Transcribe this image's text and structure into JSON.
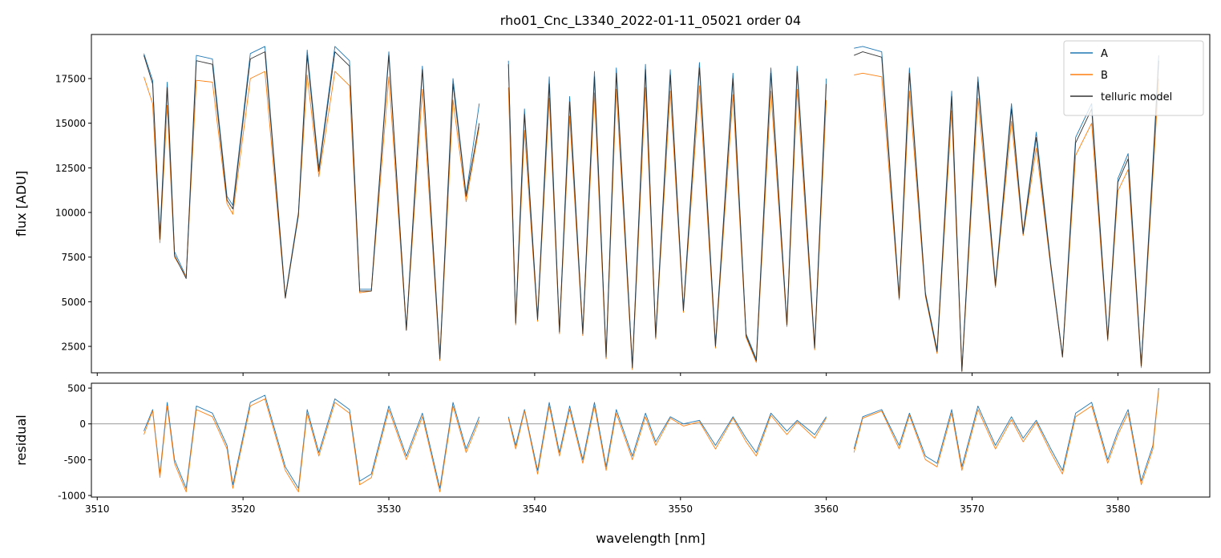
{
  "chart_data": [
    {
      "type": "line",
      "title": "rho01_Cnc_L3340_2022-01-11_05021  order 04",
      "ylabel": "flux [ADU]",
      "x": [
        3513.2,
        3513.8,
        3514.3,
        3514.8,
        3515.3,
        3516.1,
        3516.8,
        3517.9,
        3518.9,
        3519.3,
        3520.5,
        3521.5,
        3522.9,
        3523.8,
        3524.4,
        3525.2,
        3526.3,
        3527.3,
        3528.0,
        3528.8,
        3530.0,
        3531.2,
        3532.3,
        3533.5,
        3534.4,
        3535.3,
        3536.2,
        3537.0,
        3538.2,
        3538.7,
        3539.3,
        3540.2,
        3541.0,
        3541.7,
        3542.4,
        3543.3,
        3544.1,
        3544.9,
        3545.6,
        3546.7,
        3547.6,
        3548.3,
        3549.3,
        3550.2,
        3551.3,
        3552.4,
        3553.6,
        3554.5,
        3555.2,
        3556.2,
        3557.3,
        3558.0,
        3559.2,
        3560.0,
        3561.0,
        3561.9,
        3562.5,
        3563.8,
        3565.0,
        3565.7,
        3566.8,
        3567.6,
        3568.6,
        3569.3,
        3570.4,
        3571.6,
        3572.7,
        3573.5,
        3574.4,
        3575.4,
        3576.2,
        3577.1,
        3578.2,
        3579.3,
        3580.0,
        3580.7,
        3581.6,
        3582.4,
        3582.8
      ],
      "series": [
        {
          "name": "A",
          "color": "#1f77b4",
          "values": [
            18900,
            17400,
            8700,
            17300,
            7800,
            6400,
            18800,
            18600,
            10900,
            10400,
            18900,
            19300,
            5300,
            10000,
            19100,
            12500,
            19300,
            18500,
            5700,
            5700,
            19000,
            3500,
            18200,
            1900,
            17500,
            11000,
            16100,
            null,
            18500,
            3900,
            15800,
            4100,
            17600,
            3400,
            16500,
            3300,
            17900,
            2000,
            18100,
            1400,
            18300,
            3100,
            18000,
            4600,
            18400,
            2600,
            17800,
            3200,
            1800,
            18100,
            3800,
            18200,
            2500,
            17500,
            null,
            19200,
            19300,
            19000,
            5300,
            18100,
            5500,
            2300,
            16800,
            1200,
            17600,
            6000,
            16100,
            8900,
            14500,
            7100,
            2000,
            14200,
            16100,
            3000,
            11900,
            13300,
            1500,
            12800,
            18800
          ]
        },
        {
          "name": "B",
          "color": "#ff7f0e",
          "values": [
            17600,
            16100,
            8300,
            16000,
            7500,
            6400,
            17400,
            17300,
            10500,
            9900,
            17500,
            17900,
            5200,
            9800,
            17700,
            12000,
            17900,
            17100,
            5500,
            5600,
            17600,
            3400,
            16900,
            1700,
            16300,
            10600,
            14800,
            null,
            17000,
            3700,
            14600,
            3900,
            16400,
            3200,
            15400,
            3100,
            16700,
            1800,
            16900,
            1200,
            17000,
            2900,
            16800,
            4400,
            17100,
            2400,
            16600,
            3000,
            1600,
            16800,
            3600,
            16900,
            2300,
            16300,
            null,
            17700,
            17800,
            17600,
            5100,
            16800,
            5300,
            2100,
            15700,
            1100,
            16400,
            5800,
            15100,
            8700,
            13600,
            6900,
            1900,
            13200,
            15000,
            2800,
            11200,
            12400,
            1300,
            12000,
            17500
          ]
        },
        {
          "name": "telluric model",
          "color": "#333333",
          "values": [
            18800,
            17200,
            8500,
            17000,
            7600,
            6300,
            18500,
            18300,
            10700,
            10200,
            18600,
            19000,
            5200,
            9900,
            18800,
            12300,
            19000,
            18200,
            5600,
            5600,
            18800,
            3400,
            18000,
            1800,
            17200,
            10900,
            15000,
            null,
            18300,
            3800,
            15500,
            4000,
            17200,
            3300,
            16200,
            3200,
            17600,
            1900,
            17800,
            1300,
            18000,
            3000,
            17700,
            4500,
            18100,
            2500,
            17500,
            3100,
            1700,
            17800,
            3700,
            17900,
            2400,
            17200,
            null,
            18800,
            19000,
            18700,
            5200,
            17800,
            5400,
            2200,
            16500,
            1100,
            17300,
            5900,
            15800,
            8800,
            14200,
            7000,
            1900,
            13900,
            15800,
            2900,
            11700,
            13000,
            1400,
            12500,
            18500
          ]
        }
      ],
      "xlim": [
        3509.6,
        3586.3
      ],
      "ylim": [
        1020,
        19970
      ],
      "xticks": [
        3510,
        3520,
        3530,
        3540,
        3550,
        3560,
        3570,
        3580
      ],
      "xticklabels": false,
      "yticks": [
        2500,
        5000,
        7500,
        10000,
        12500,
        15000,
        17500
      ],
      "legend": "upper right"
    },
    {
      "type": "line",
      "xlabel": "wavelength [nm]",
      "ylabel": "residual",
      "hline": 0,
      "x": [
        3513.2,
        3513.8,
        3514.3,
        3514.8,
        3515.3,
        3516.1,
        3516.8,
        3517.9,
        3518.9,
        3519.3,
        3520.5,
        3521.5,
        3522.9,
        3523.8,
        3524.4,
        3525.2,
        3526.3,
        3527.3,
        3528.0,
        3528.8,
        3530.0,
        3531.2,
        3532.3,
        3533.5,
        3534.4,
        3535.3,
        3536.2,
        3537.0,
        3538.2,
        3538.7,
        3539.3,
        3540.2,
        3541.0,
        3541.7,
        3542.4,
        3543.3,
        3544.1,
        3544.9,
        3545.6,
        3546.7,
        3547.6,
        3548.3,
        3549.3,
        3550.2,
        3551.3,
        3552.4,
        3553.6,
        3554.5,
        3555.2,
        3556.2,
        3557.3,
        3558.0,
        3559.2,
        3560.0,
        3561.0,
        3561.9,
        3562.5,
        3563.8,
        3565.0,
        3565.7,
        3566.8,
        3567.6,
        3568.6,
        3569.3,
        3570.4,
        3571.6,
        3572.7,
        3573.5,
        3574.4,
        3575.4,
        3576.2,
        3577.1,
        3578.2,
        3579.3,
        3580.0,
        3580.7,
        3581.6,
        3582.4,
        3582.8
      ],
      "series": [
        {
          "name": "A",
          "color": "#1f77b4",
          "values": [
            -100,
            200,
            -700,
            300,
            -500,
            -900,
            250,
            150,
            -300,
            -850,
            300,
            400,
            -600,
            -900,
            200,
            -400,
            350,
            200,
            -800,
            -700,
            250,
            -450,
            150,
            -900,
            300,
            -350,
            100,
            null,
            100,
            -300,
            200,
            -650,
            300,
            -400,
            250,
            -500,
            300,
            -600,
            200,
            -450,
            150,
            -250,
            100,
            0,
            50,
            -300,
            100,
            -200,
            -400,
            150,
            -100,
            50,
            -150,
            100,
            null,
            -350,
            100,
            200,
            -300,
            150,
            -450,
            -550,
            200,
            -600,
            250,
            -300,
            100,
            -200,
            50,
            -350,
            -650,
            150,
            300,
            -500,
            -100,
            200,
            -800,
            -300,
            500
          ]
        },
        {
          "name": "B",
          "color": "#ff7f0e",
          "values": [
            -150,
            180,
            -750,
            250,
            -550,
            -950,
            200,
            100,
            -350,
            -900,
            250,
            350,
            -650,
            -950,
            150,
            -450,
            300,
            150,
            -850,
            -750,
            200,
            -500,
            100,
            -950,
            250,
            -400,
            50,
            null,
            80,
            -350,
            180,
            -700,
            250,
            -450,
            200,
            -550,
            250,
            -650,
            150,
            -500,
            100,
            -300,
            80,
            -30,
            30,
            -350,
            80,
            -250,
            -450,
            120,
            -150,
            30,
            -200,
            80,
            null,
            -400,
            80,
            180,
            -350,
            120,
            -500,
            -600,
            150,
            -650,
            200,
            -350,
            60,
            -250,
            20,
            -400,
            -700,
            100,
            250,
            -550,
            -150,
            150,
            -850,
            -350,
            480
          ]
        }
      ],
      "xlim": [
        3509.6,
        3586.3
      ],
      "ylim": [
        -1022,
        568
      ],
      "xticks": [
        3510,
        3520,
        3530,
        3540,
        3550,
        3560,
        3570,
        3580
      ],
      "xticklabels": true,
      "yticks": [
        -1000,
        -500,
        0,
        500
      ]
    }
  ]
}
